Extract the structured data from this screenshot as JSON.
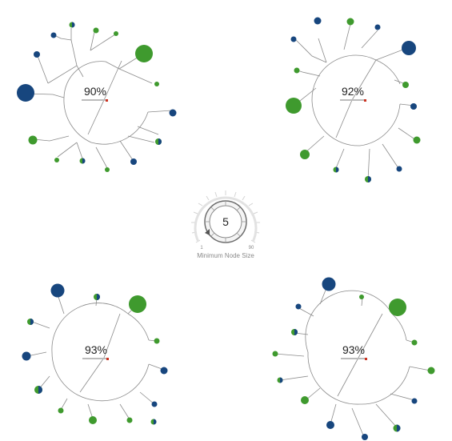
{
  "colors": {
    "blue": "#17467e",
    "green": "#3f9a2e",
    "branch": "#8a8a8a",
    "ring": "#cfcfcf",
    "marker": "#cc3322"
  },
  "trees": [
    {
      "id": "tree-top-left",
      "percent_label": "90%",
      "nodes": [
        {
          "color": "blue"
        },
        {
          "color": "blue"
        },
        {
          "color": "mixed"
        },
        {
          "color": "green"
        },
        {
          "color": "green"
        },
        {
          "color": "green"
        },
        {
          "color": "green"
        },
        {
          "color": "blue"
        },
        {
          "color": "mixed"
        },
        {
          "color": "mixed"
        },
        {
          "color": "green"
        },
        {
          "color": "mixed"
        },
        {
          "color": "green"
        },
        {
          "color": "green"
        }
      ]
    },
    {
      "id": "tree-top-right",
      "percent_label": "92%",
      "nodes": [
        {
          "color": "blue"
        },
        {
          "color": "mixed"
        },
        {
          "color": "green"
        },
        {
          "color": "green"
        },
        {
          "color": "blue"
        },
        {
          "color": "green"
        },
        {
          "color": "blue"
        },
        {
          "color": "green"
        },
        {
          "color": "blue"
        },
        {
          "color": "mixed"
        },
        {
          "color": "mixed"
        },
        {
          "color": "green"
        },
        {
          "color": "green"
        },
        {
          "color": "mixed"
        }
      ]
    },
    {
      "id": "tree-bottom-left",
      "percent_label": "93%",
      "nodes": [
        {
          "color": "blue"
        },
        {
          "color": "mixed"
        },
        {
          "color": "blue"
        },
        {
          "color": "mixed"
        },
        {
          "color": "green"
        },
        {
          "color": "green"
        },
        {
          "color": "mixed"
        },
        {
          "color": "blue"
        },
        {
          "color": "green"
        },
        {
          "color": "mixed"
        },
        {
          "color": "mixed"
        },
        {
          "color": "green"
        },
        {
          "color": "mixed"
        }
      ]
    },
    {
      "id": "tree-bottom-right",
      "percent_label": "93%",
      "nodes": [
        {
          "color": "blue"
        },
        {
          "color": "mixed"
        },
        {
          "color": "green"
        },
        {
          "color": "green"
        },
        {
          "color": "green"
        },
        {
          "color": "blue"
        },
        {
          "color": "mixed"
        },
        {
          "color": "blue"
        },
        {
          "color": "mixed"
        },
        {
          "color": "green"
        },
        {
          "color": "green"
        },
        {
          "color": "mixed"
        },
        {
          "color": "green"
        },
        {
          "color": "blue"
        }
      ]
    }
  ],
  "control": {
    "value": "5",
    "min_label": "1",
    "max_label": "90",
    "label": "Minimum Node Size"
  }
}
